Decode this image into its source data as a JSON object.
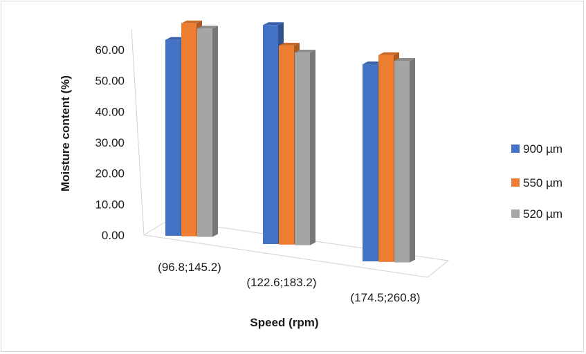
{
  "chart_data": {
    "type": "bar",
    "style": "3d-clustered-column",
    "title": "",
    "xlabel": "Speed (rpm)",
    "ylabel": "Moisture content (%)",
    "categories": [
      "(96.8;145.2)",
      "(122.6;183.2)",
      "(174.5;260.8)"
    ],
    "series": [
      {
        "name": "900 µm",
        "values": [
          55.2,
          58.3,
          48.6
        ],
        "color": "#4472C4"
      },
      {
        "name": "550 µm",
        "values": [
          60.0,
          53.0,
          51.0
        ],
        "color": "#ED7D31"
      },
      {
        "name": "520 µm",
        "values": [
          58.7,
          51.3,
          49.7
        ],
        "color": "#A5A5A5"
      }
    ],
    "ylim": [
      0,
      60
    ],
    "yticks": [
      "0.00",
      "10.00",
      "20.00",
      "30.00",
      "40.00",
      "50.00",
      "60.00"
    ],
    "grid": false,
    "legend": "right"
  }
}
